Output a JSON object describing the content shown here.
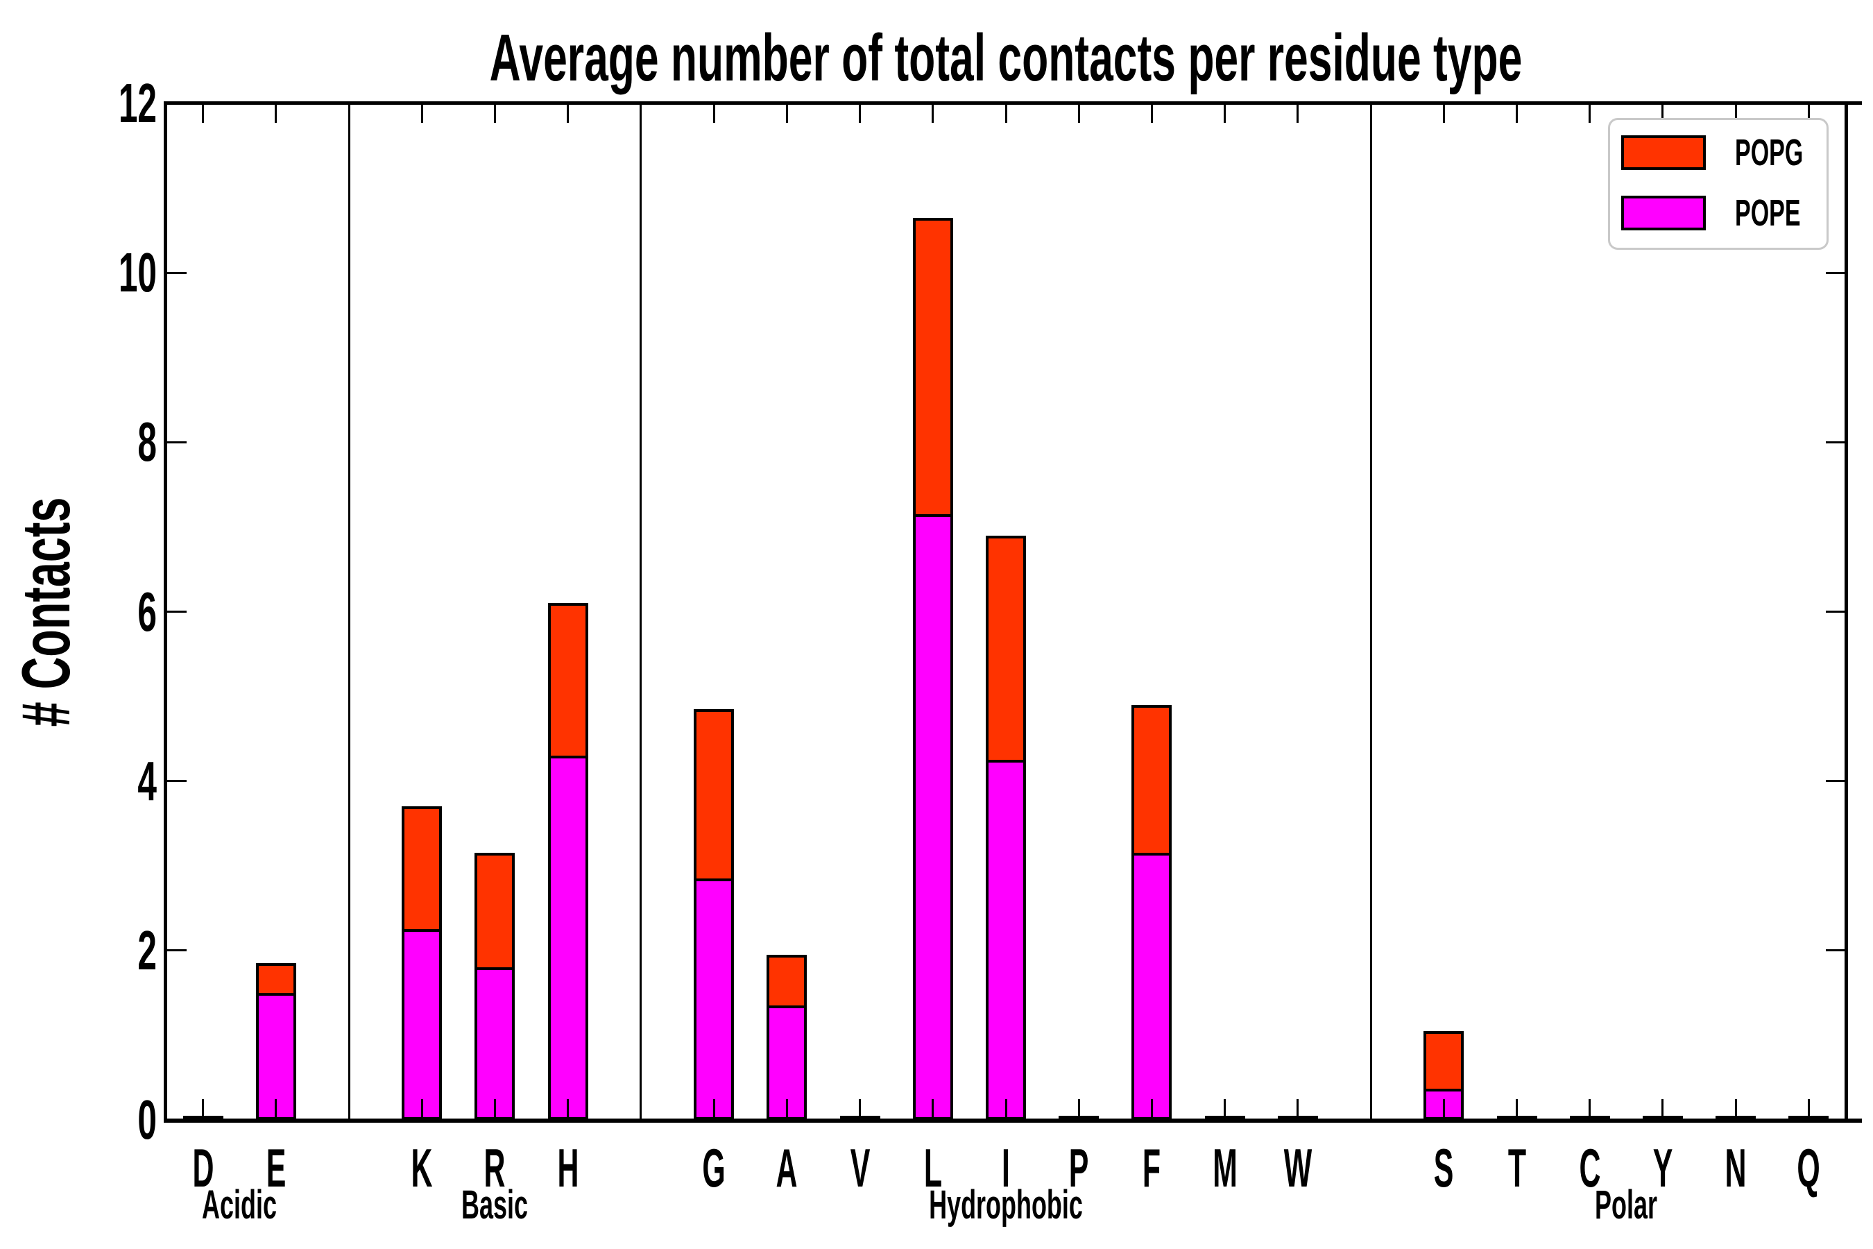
{
  "chart_data": {
    "type": "bar",
    "subtype": "stacked",
    "title": "Average number of total contacts per residue type",
    "ylabel": "# Contacts",
    "xlabel": "",
    "ylim": [
      0,
      12
    ],
    "yticks": [
      "0",
      "2",
      "4",
      "6",
      "8",
      "10",
      "12"
    ],
    "grid": false,
    "background": "#ffffff",
    "axis_color": "#000000",
    "legend_position": "upper right",
    "categories": [
      "D",
      "E",
      "K",
      "R",
      "H",
      "G",
      "A",
      "V",
      "L",
      "I",
      "P",
      "F",
      "M",
      "W",
      "S",
      "T",
      "C",
      "Y",
      "N",
      "Q"
    ],
    "groups": [
      {
        "label": "Acidic",
        "members": [
          "D",
          "E"
        ]
      },
      {
        "label": "Basic",
        "members": [
          "K",
          "R",
          "H"
        ]
      },
      {
        "label": "Hydrophobic",
        "members": [
          "G",
          "A",
          "V",
          "L",
          "I",
          "P",
          "F",
          "M",
          "W"
        ]
      },
      {
        "label": "Polar",
        "members": [
          "S",
          "T",
          "C",
          "Y",
          "N",
          "Q"
        ]
      }
    ],
    "series": [
      {
        "name": "POPG",
        "color": "#ff3300",
        "stack_order": "top",
        "values": {
          "D": 0,
          "E": 0.35,
          "K": 1.45,
          "R": 1.35,
          "H": 1.8,
          "G": 2.0,
          "A": 0.6,
          "V": 0,
          "L": 3.5,
          "I": 2.65,
          "P": 0,
          "F": 1.75,
          "M": 0,
          "W": 0,
          "S": 0.68,
          "T": 0,
          "C": 0,
          "Y": 0,
          "N": 0,
          "Q": 0
        }
      },
      {
        "name": "POPE",
        "color": "#ff00ff",
        "stack_order": "bottom",
        "values": {
          "D": 0,
          "E": 1.5,
          "K": 2.25,
          "R": 1.8,
          "H": 4.3,
          "G": 2.85,
          "A": 1.35,
          "V": 0,
          "L": 7.15,
          "I": 4.25,
          "P": 0,
          "F": 3.15,
          "M": 0,
          "W": 0,
          "S": 0.37,
          "T": 0,
          "C": 0,
          "Y": 0,
          "N": 0,
          "Q": 0
        }
      }
    ]
  }
}
